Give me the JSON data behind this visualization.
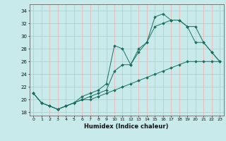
{
  "xlabel": "Humidex (Indice chaleur)",
  "ylabel": "",
  "bg_color": "#c8eaea",
  "grid_color": "#f0b0b0",
  "line_color": "#1a7060",
  "xlim": [
    -0.5,
    23.5
  ],
  "ylim": [
    17.5,
    35.0
  ],
  "xticks": [
    0,
    1,
    2,
    3,
    4,
    5,
    6,
    7,
    8,
    9,
    10,
    11,
    12,
    13,
    14,
    15,
    16,
    17,
    18,
    19,
    20,
    21,
    22,
    23
  ],
  "yticks": [
    18,
    20,
    22,
    24,
    26,
    28,
    30,
    32,
    34
  ],
  "series1": [
    21.0,
    19.5,
    19.0,
    18.5,
    19.0,
    19.5,
    20.5,
    21.0,
    21.5,
    22.5,
    28.5,
    28.0,
    25.5,
    28.0,
    29.0,
    33.0,
    33.5,
    32.5,
    32.5,
    31.5,
    29.0,
    29.0,
    27.5,
    26.0
  ],
  "series2": [
    21.0,
    19.5,
    19.0,
    18.5,
    19.0,
    19.5,
    20.0,
    20.5,
    21.0,
    21.5,
    24.5,
    25.5,
    25.5,
    27.5,
    29.0,
    31.5,
    32.0,
    32.5,
    32.5,
    31.5,
    31.5,
    29.0,
    27.5,
    26.0
  ],
  "series3": [
    21.0,
    19.5,
    19.0,
    18.5,
    19.0,
    19.5,
    20.0,
    20.0,
    20.5,
    21.0,
    21.5,
    22.0,
    22.5,
    23.0,
    23.5,
    24.0,
    24.5,
    25.0,
    25.5,
    26.0,
    26.0,
    26.0,
    26.0,
    26.0
  ]
}
